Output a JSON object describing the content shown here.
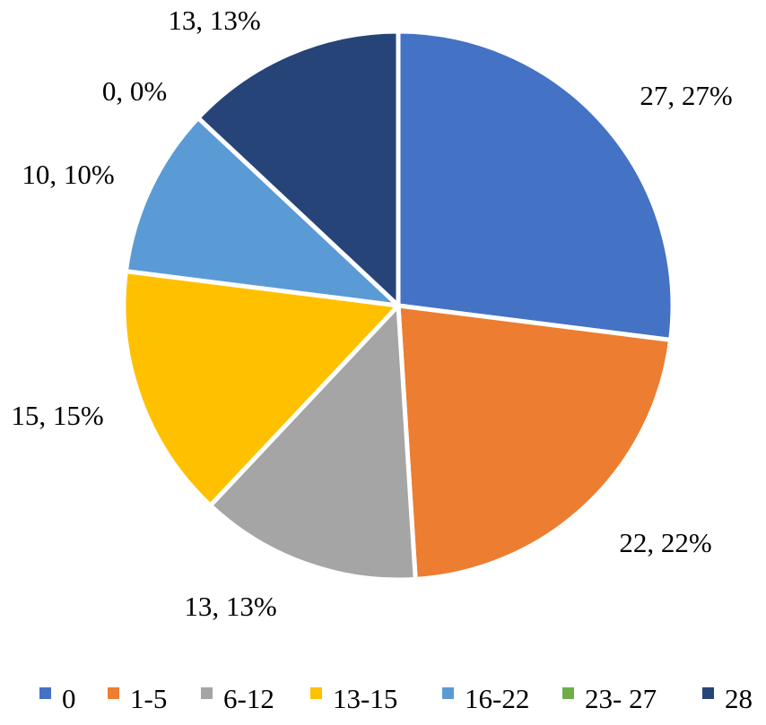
{
  "chart_data": {
    "type": "pie",
    "categories": [
      "0",
      "1-5",
      "6-12",
      "13-15",
      "16-22",
      "23- 27",
      "28"
    ],
    "values": [
      27,
      22,
      13,
      15,
      10,
      0,
      13
    ],
    "percent_labels": [
      "27%",
      "22%",
      "13%",
      "15%",
      "10%",
      "0%",
      "13%"
    ],
    "data_labels": [
      "27, 27%",
      "22, 22%",
      "13, 13%",
      "15, 15%",
      "10, 10%",
      "0, 0%",
      "13, 13%"
    ],
    "colors": [
      "#4472C4",
      "#ED7D31",
      "#A5A5A5",
      "#FFC000",
      "#5B9BD5",
      "#70AD47",
      "#264478"
    ],
    "start_angle": "12 o'clock",
    "direction": "clockwise",
    "legend_position": "bottom",
    "title": ""
  }
}
